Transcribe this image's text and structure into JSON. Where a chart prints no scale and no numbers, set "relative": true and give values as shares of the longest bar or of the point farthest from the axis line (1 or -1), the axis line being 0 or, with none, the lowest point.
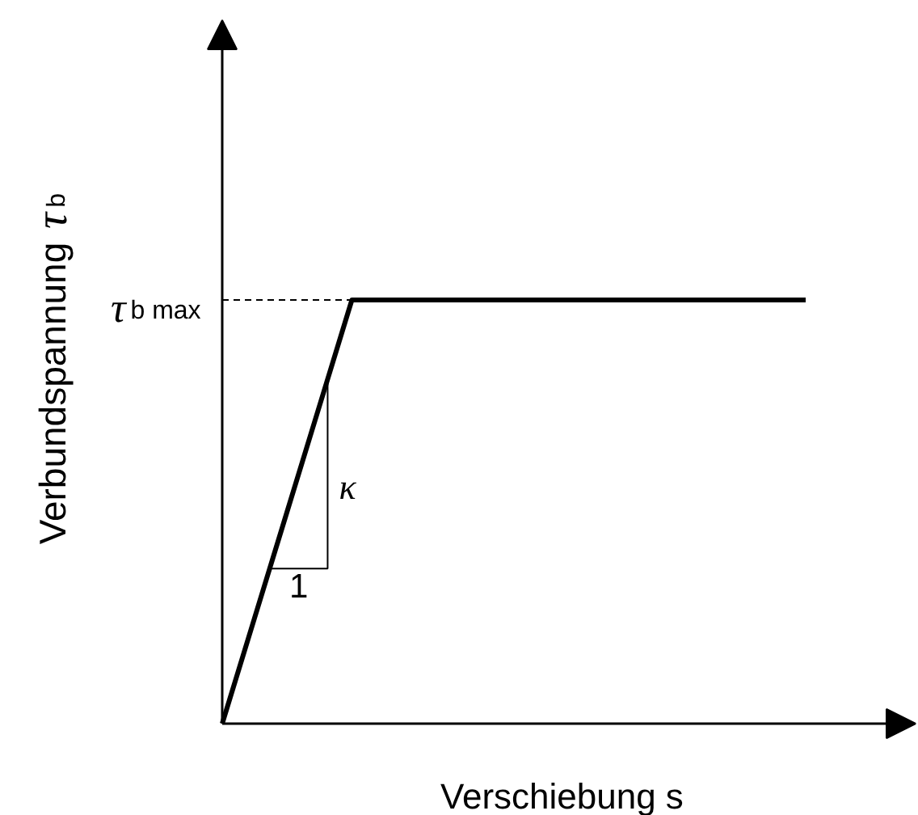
{
  "chart_data": {
    "type": "line",
    "relative": true,
    "categories": [
      null,
      null,
      null,
      null,
      null,
      null,
      null,
      null,
      null,
      null
    ],
    "values": [
      0,
      0.5,
      1,
      1,
      1,
      1,
      1,
      1,
      1,
      1
    ],
    "color": "#000000",
    "line_style": "solid",
    "xlabel": "Verschiebung s",
    "ylabel": "Verbundspannung τ$_{b}$",
    "ref_lines": [
      {
        "axis": "y",
        "value": 1,
        "label": "τ$_{b max}$",
        "color": "#000000",
        "line_style": "dashed"
      }
    ],
    "annotations": [
      "1",
      "κ"
    ],
    "grid": false
  }
}
